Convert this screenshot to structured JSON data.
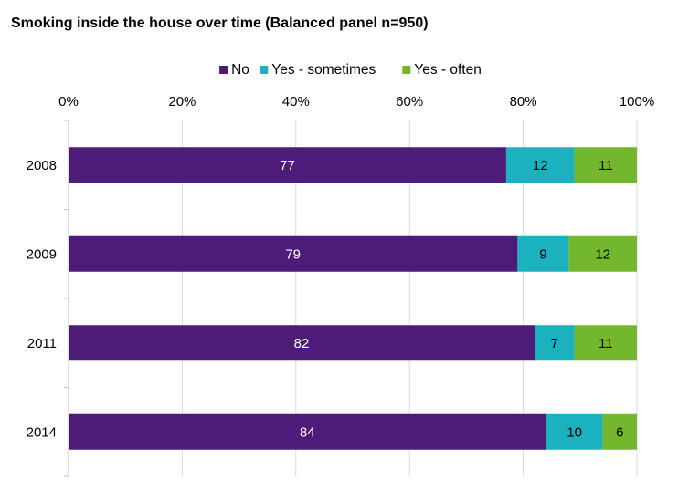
{
  "chart_data": {
    "type": "bar",
    "orientation": "horizontal",
    "stacked": true,
    "title": "Smoking inside the house over time (Balanced panel n=950)",
    "categories": [
      "2008",
      "2009",
      "2011",
      "2014"
    ],
    "series": [
      {
        "name": "No",
        "values": [
          77,
          79,
          82,
          84
        ],
        "color": "#4d1c79",
        "label_color": "#ffffff"
      },
      {
        "name": "Yes - sometimes",
        "values": [
          12,
          9,
          7,
          10
        ],
        "color": "#1bb1bf",
        "label_color": "#000000"
      },
      {
        "name": "Yes - often",
        "values": [
          11,
          12,
          11,
          6
        ],
        "color": "#72b72d",
        "label_color": "#000000"
      }
    ],
    "xlim": [
      0,
      100
    ],
    "xticks": [
      "0%",
      "20%",
      "40%",
      "60%",
      "80%",
      "100%"
    ],
    "xaxis_position": "top",
    "grid": true,
    "legend_position": "top"
  }
}
